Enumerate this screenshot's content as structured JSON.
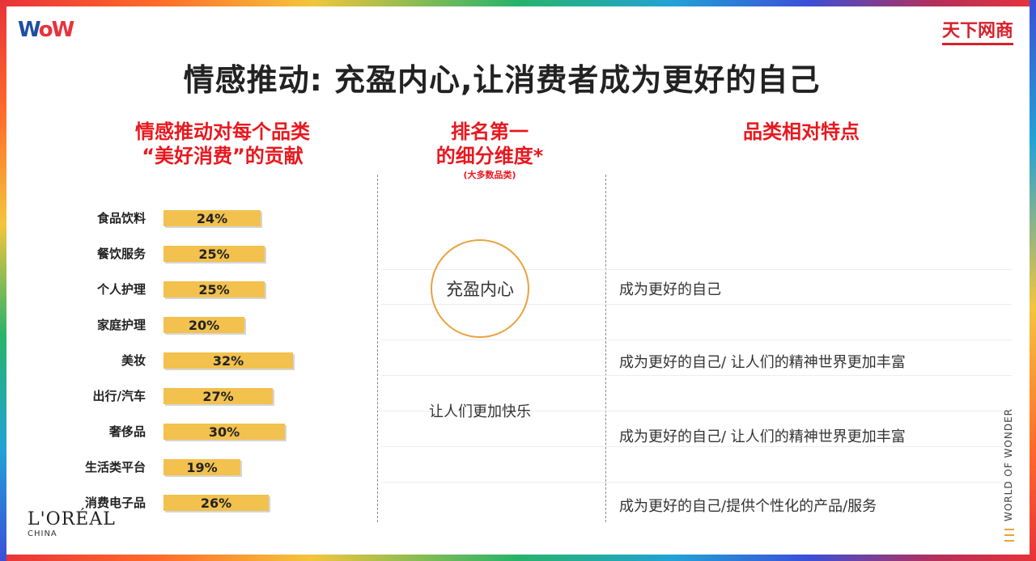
{
  "logos": {
    "left": "WOW",
    "right": "天下网商",
    "bottom_brand": "L'ORÉAL",
    "bottom_sub": "CHINA",
    "side_text": "WORLD OF WONDER"
  },
  "title": "情感推动: 充盈内心,让消费者成为更好的自己",
  "columns": {
    "col1_title_line1": "情感推动对每个品类",
    "col1_title_line2": "“美好消费”的贡献",
    "col2_title_line1": "排名第一",
    "col2_title_line2": "的细分维度*",
    "col2_sub": "(大多数品类)",
    "col3_title": "品类相对特点"
  },
  "middle": {
    "circle_text": "充盈内心",
    "happy_text": "让人们更加快乐"
  },
  "features": [
    "成为更好的自己",
    "成为更好的自己/ 让人们的精神世界更加丰富",
    "成为更好的自己/ 让人们的精神世界更加丰富",
    "成为更好的自己/提供个性化的产品/服务"
  ],
  "chart_data": {
    "type": "bar",
    "orientation": "horizontal",
    "title": "情感推动对每个品类“美好消费”的贡献",
    "categories": [
      "食品饮料",
      "餐饮服务",
      "个人护理",
      "家庭护理",
      "美妆",
      "出行/汽车",
      "奢侈品",
      "生活类平台",
      "消费电子品"
    ],
    "values": [
      24,
      25,
      25,
      20,
      32,
      27,
      30,
      19,
      26
    ],
    "value_labels": [
      "24%",
      "25%",
      "25%",
      "20%",
      "32%",
      "27%",
      "30%",
      "19%",
      "26%"
    ],
    "unit": "%",
    "bar_color": "#f2c14e"
  }
}
